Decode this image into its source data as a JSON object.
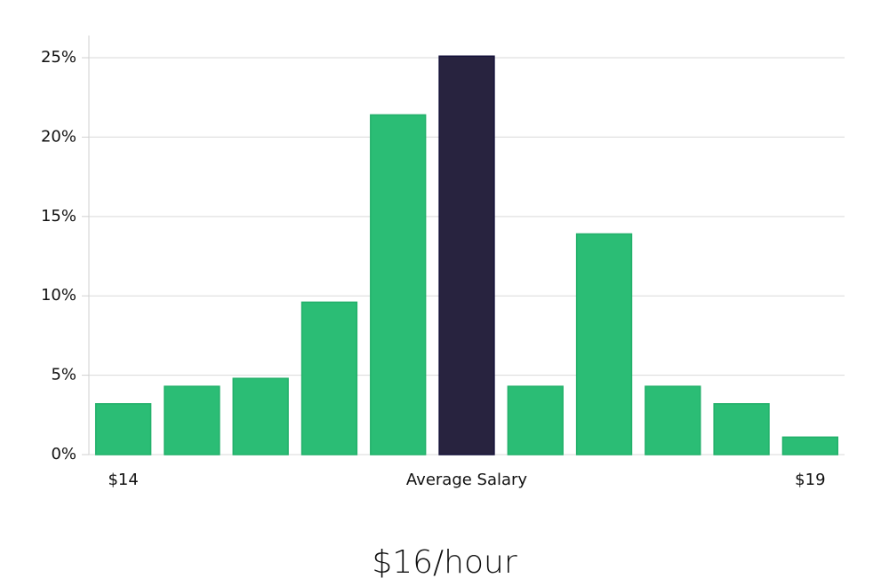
{
  "chart_data": {
    "type": "bar",
    "categories": [
      "$14",
      null,
      null,
      null,
      null,
      "Average Salary",
      null,
      null,
      null,
      null,
      "$19"
    ],
    "values": [
      3.2,
      4.3,
      4.8,
      9.6,
      21.4,
      25.1,
      4.3,
      13.9,
      4.3,
      3.2,
      1.1
    ],
    "colors": [
      "#2bbd75",
      "#2bbd75",
      "#2bbd75",
      "#2bbd75",
      "#2bbd75",
      "#28233f",
      "#2bbd75",
      "#2bbd75",
      "#2bbd75",
      "#2bbd75",
      "#2bbd75"
    ],
    "ylim": [
      0,
      26.4
    ],
    "yticks": [
      {
        "value": 0,
        "label": "0%"
      },
      {
        "value": 5,
        "label": "5%"
      },
      {
        "value": 10,
        "label": "10%"
      },
      {
        "value": 15,
        "label": "15%"
      },
      {
        "value": 20,
        "label": "20%"
      },
      {
        "value": 25,
        "label": "25%"
      }
    ],
    "grid": true,
    "subtitle": "$16/hour"
  }
}
